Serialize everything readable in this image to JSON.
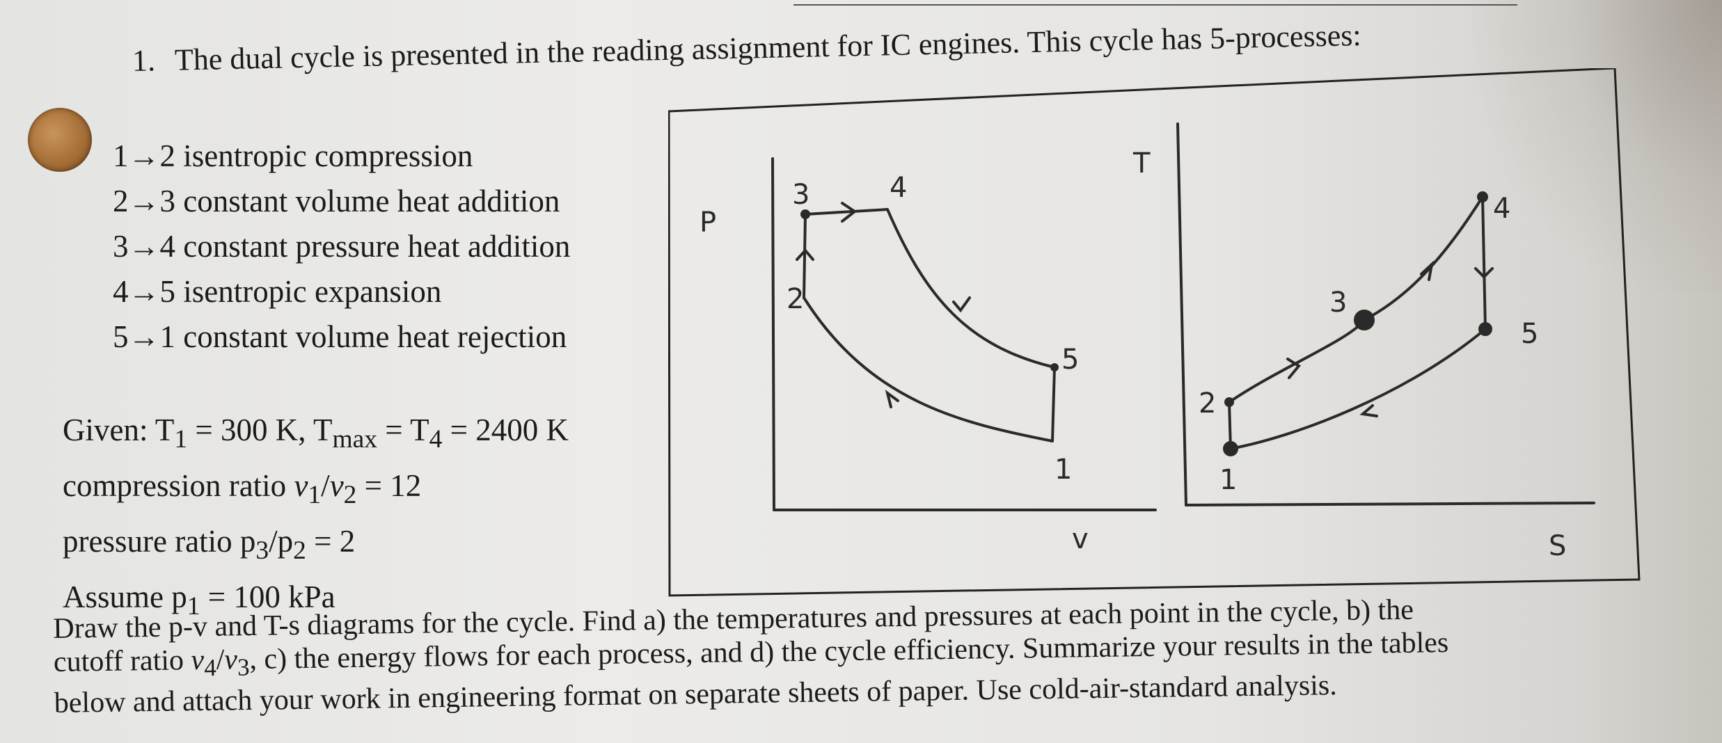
{
  "question": {
    "number": "1.",
    "text": "The dual cycle is presented in the reading assignment for IC engines.  This cycle has 5-processes:"
  },
  "processes": [
    "1→2 isentropic compression",
    "2→3 constant volume heat addition",
    "3→4 constant pressure heat addition",
    "4→5 isentropic expansion",
    "5→1 constant volume heat rejection"
  ],
  "given": {
    "line1_prefix": "Given: T",
    "line1_sub1": "1",
    "line1_mid": " = 300 K, T",
    "line1_sub2": "max",
    "line1_mid2": " = T",
    "line1_sub3": "4",
    "line1_end": " = 2400 K",
    "line2_prefix": "compression ratio ",
    "line2_v1": "v",
    "line2_sub1": "1",
    "line2_slash": "/",
    "line2_v2": "v",
    "line2_sub2": "2",
    "line2_end": " = 12",
    "line3_prefix": "pressure ratio p",
    "line3_sub1": "3",
    "line3_slash": "/p",
    "line3_sub2": "2",
    "line3_end": " = 2",
    "line4_prefix": "Assume p",
    "line4_sub1": "1",
    "line4_end": " = 100 kPa"
  },
  "diagram": {
    "pv_axis_p": "P",
    "pv_axis_v": "v",
    "pv_points": [
      "1",
      "2",
      "3",
      "4",
      "5"
    ],
    "ts_axis_t": "T",
    "ts_axis_s": "S",
    "ts_points": [
      "1",
      "2",
      "3",
      "4",
      "5"
    ]
  },
  "instructions": {
    "line1": "Draw the p-v and T-s diagrams for the cycle. Find a) the temperatures and pressures at each point in the cycle, b) the",
    "line2_a": "cutoff ratio ",
    "line2_v4": "v",
    "line2_sub4": "4",
    "line2_slash": "/",
    "line2_v3": "v",
    "line2_sub3": "3",
    "line2_b": ", c) the energy flows for each process, and d) the cycle efficiency. Summarize your results in the tables",
    "line3": "below and attach your work in engineering format on separate sheets of paper.  Use cold-air-standard analysis."
  }
}
